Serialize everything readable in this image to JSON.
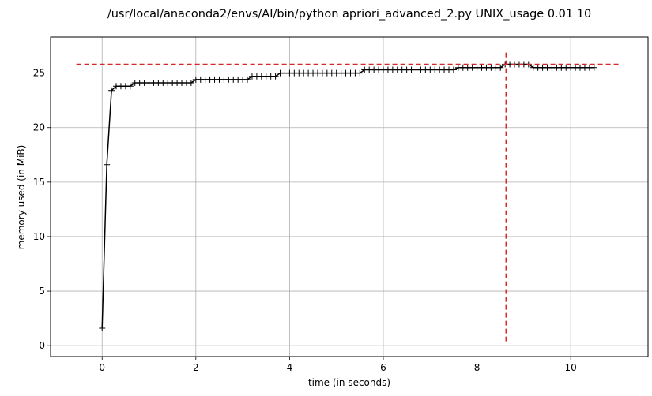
{
  "chart_data": {
    "type": "line",
    "title": "/usr/local/anaconda2/envs/AI/bin/python apriori_advanced_2.py UNIX_usage 0.01 10",
    "xlabel": "time (in seconds)",
    "ylabel": "memory used (in MiB)",
    "xlim": [
      -1.1,
      11.65
    ],
    "ylim": [
      -1.0,
      28.3
    ],
    "xticks": [
      0,
      2,
      4,
      6,
      8,
      10
    ],
    "yticks": [
      0,
      5,
      10,
      15,
      20,
      25
    ],
    "grid": true,
    "line_color": "#000000",
    "marker": "+",
    "series": [
      {
        "x": [
          0.0,
          0.1,
          0.2,
          0.3,
          0.4,
          0.5,
          0.6,
          0.7,
          0.8,
          0.9,
          1.0,
          1.1,
          1.2,
          1.3,
          1.4,
          1.5,
          1.6,
          1.7,
          1.8,
          1.9,
          2.0,
          2.1,
          2.2,
          2.3,
          2.4,
          2.5,
          2.6,
          2.7,
          2.8,
          2.9,
          3.0,
          3.1,
          3.2,
          3.3,
          3.4,
          3.5,
          3.6,
          3.7,
          3.8,
          3.9,
          4.0,
          4.1,
          4.2,
          4.3,
          4.4,
          4.5,
          4.6,
          4.7,
          4.8,
          4.9,
          5.0,
          5.1,
          5.2,
          5.3,
          5.4,
          5.5,
          5.6,
          5.7,
          5.8,
          5.9,
          6.0,
          6.1,
          6.2,
          6.3,
          6.4,
          6.5,
          6.6,
          6.7,
          6.8,
          6.9,
          7.0,
          7.1,
          7.2,
          7.3,
          7.4,
          7.5,
          7.6,
          7.7,
          7.8,
          7.9,
          8.0,
          8.1,
          8.2,
          8.3,
          8.4,
          8.5,
          8.6,
          8.7,
          8.8,
          8.9,
          9.0,
          9.1,
          9.2,
          9.3,
          9.4,
          9.5,
          9.6,
          9.7,
          9.8,
          9.9,
          10.0,
          10.1,
          10.2,
          10.3,
          10.4,
          10.5
        ],
        "y": [
          1.6,
          16.6,
          23.4,
          23.8,
          23.8,
          23.8,
          23.8,
          24.1,
          24.1,
          24.1,
          24.1,
          24.1,
          24.1,
          24.1,
          24.1,
          24.1,
          24.1,
          24.1,
          24.1,
          24.1,
          24.4,
          24.4,
          24.4,
          24.4,
          24.4,
          24.4,
          24.4,
          24.4,
          24.4,
          24.4,
          24.4,
          24.4,
          24.7,
          24.7,
          24.7,
          24.7,
          24.7,
          24.7,
          25.0,
          25.0,
          25.0,
          25.0,
          25.0,
          25.0,
          25.0,
          25.0,
          25.0,
          25.0,
          25.0,
          25.0,
          25.0,
          25.0,
          25.0,
          25.0,
          25.0,
          25.0,
          25.3,
          25.3,
          25.3,
          25.3,
          25.3,
          25.3,
          25.3,
          25.3,
          25.3,
          25.3,
          25.3,
          25.3,
          25.3,
          25.3,
          25.3,
          25.3,
          25.3,
          25.3,
          25.3,
          25.3,
          25.5,
          25.5,
          25.5,
          25.5,
          25.5,
          25.5,
          25.5,
          25.5,
          25.5,
          25.5,
          25.8,
          25.8,
          25.8,
          25.8,
          25.8,
          25.8,
          25.5,
          25.5,
          25.5,
          25.5,
          25.5,
          25.5,
          25.5,
          25.5,
          25.5,
          25.5,
          25.5,
          25.5,
          25.5,
          25.5
        ]
      }
    ],
    "annotations": [
      {
        "type": "hline",
        "y": 25.8,
        "x_from": -0.55,
        "x_to": 11.05,
        "color": "#d62728",
        "style": "dashed"
      },
      {
        "type": "vline",
        "x": 8.62,
        "y_from": 0.4,
        "y_to": 27.0,
        "color": "#d62728",
        "style": "dashed"
      }
    ]
  }
}
